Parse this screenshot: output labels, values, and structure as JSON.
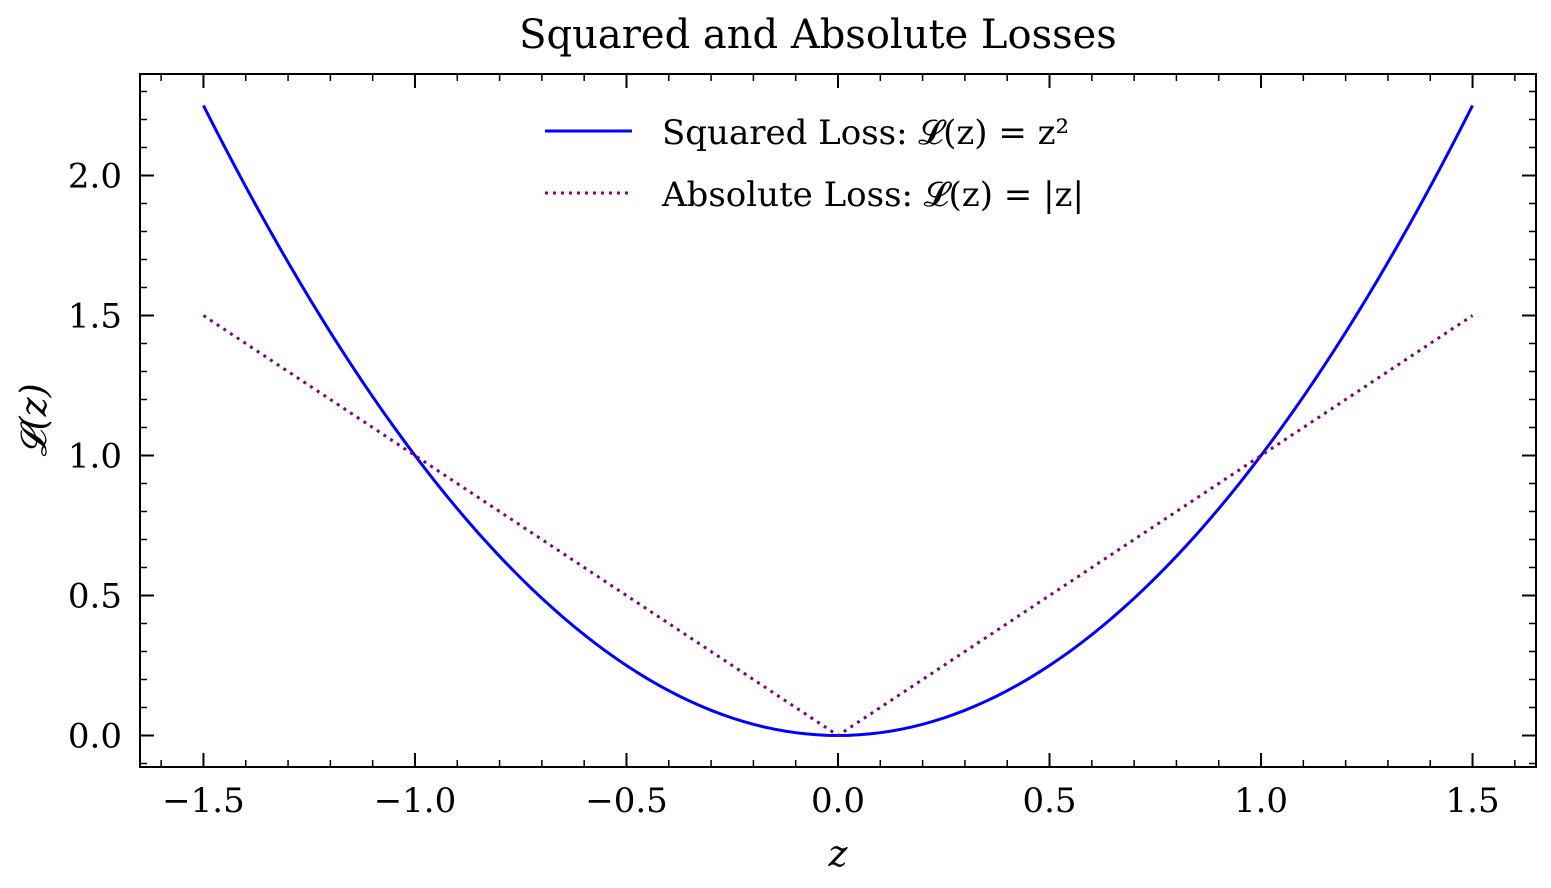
{
  "chart_data": {
    "type": "line",
    "title": "Squared and Absolute Losses",
    "xlabel": "z",
    "ylabel": "𝓛(z)",
    "xlim": [
      -1.65,
      1.65
    ],
    "ylim": [
      -0.1125,
      2.3625
    ],
    "x_ticks": [
      -1.5,
      -1.0,
      -0.5,
      0.0,
      0.5,
      1.0,
      1.5
    ],
    "x_tick_labels": [
      "−1.5",
      "−1.0",
      "−0.5",
      "0.0",
      "0.5",
      "1.0",
      "1.5"
    ],
    "y_ticks": [
      0.0,
      0.5,
      1.0,
      1.5,
      2.0
    ],
    "y_tick_labels": [
      "0.0",
      "0.5",
      "1.0",
      "1.5",
      "2.0"
    ],
    "legend_position": "top-center",
    "grid": false,
    "series": [
      {
        "name": "Squared Loss: 𝓛(z) = z²",
        "color": "#0000ff",
        "line_style": "solid",
        "x": [
          -1.5,
          -1.25,
          -1.0,
          -0.75,
          -0.5,
          -0.25,
          0.0,
          0.25,
          0.5,
          0.75,
          1.0,
          1.25,
          1.5
        ],
        "y": [
          2.25,
          1.5625,
          1.0,
          0.5625,
          0.25,
          0.0625,
          0.0,
          0.0625,
          0.25,
          0.5625,
          1.0,
          1.5625,
          2.25
        ]
      },
      {
        "name": "Absolute Loss: 𝓛(z) = |z|",
        "color": "#800080",
        "line_style": "dotted",
        "x": [
          -1.5,
          -1.0,
          -0.5,
          0.0,
          0.5,
          1.0,
          1.5
        ],
        "y": [
          1.5,
          1.0,
          0.5,
          0.0,
          0.5,
          1.0,
          1.5
        ]
      }
    ]
  }
}
